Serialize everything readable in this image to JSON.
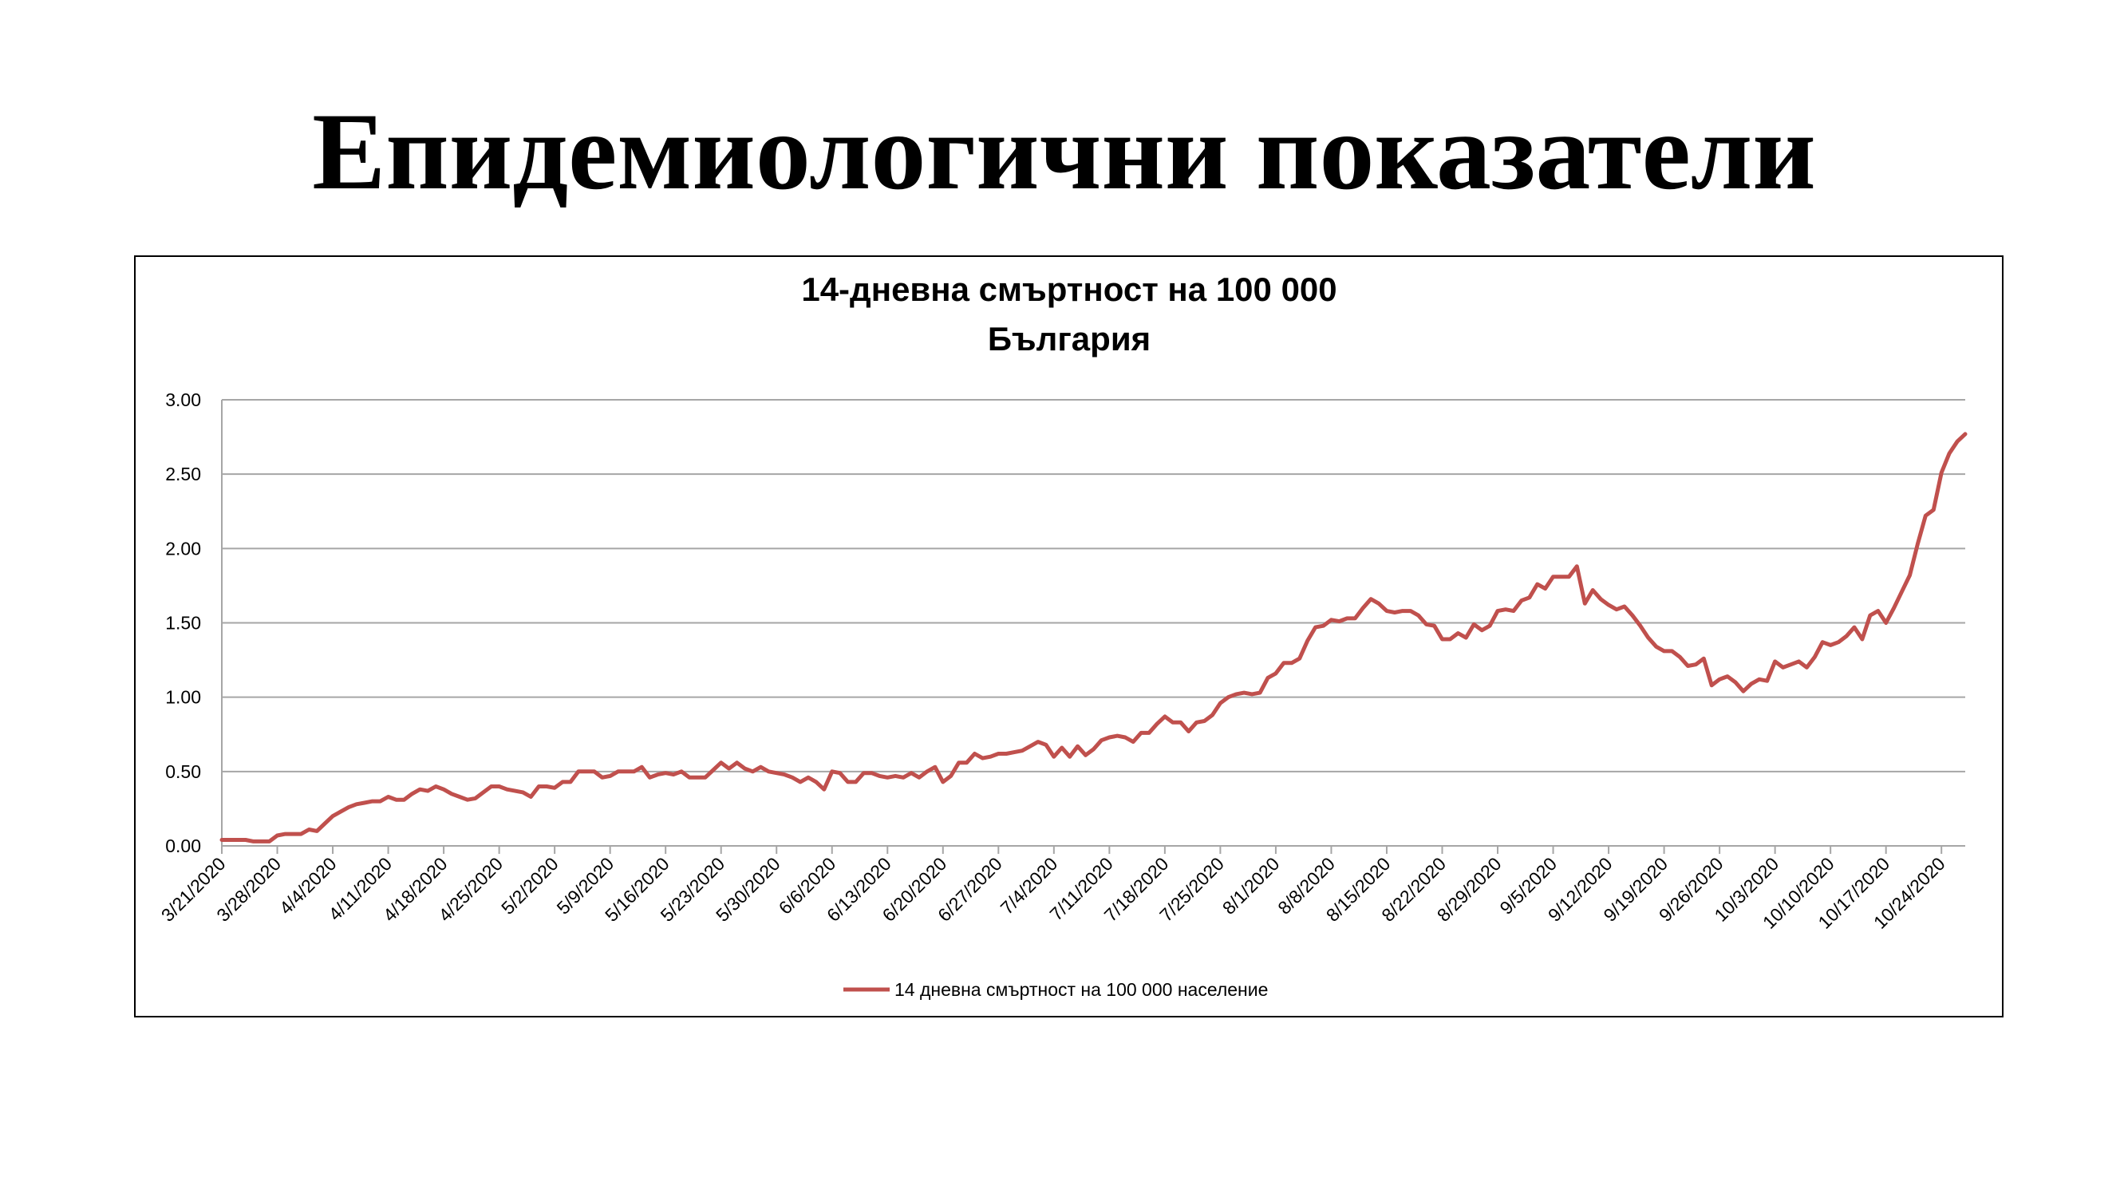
{
  "slide": {
    "title": "Епидемиологични показатели"
  },
  "chart_data": {
    "type": "line",
    "title": "14-дневна смъртност на 100 000",
    "subtitle": "България",
    "xlabel": "",
    "ylabel": "",
    "ylim": [
      0,
      3
    ],
    "yticks": [
      "0.00",
      "0.50",
      "1.00",
      "1.50",
      "2.00",
      "2.50",
      "3.00"
    ],
    "grid": true,
    "legend_position": "bottom",
    "start_date": "3/21/2020",
    "end_date": "10/27/2020",
    "x_tick_labels": [
      "3/21/2020",
      "3/28/2020",
      "4/4/2020",
      "4/11/2020",
      "4/18/2020",
      "4/25/2020",
      "5/2/2020",
      "5/9/2020",
      "5/16/2020",
      "5/23/2020",
      "5/30/2020",
      "6/6/2020",
      "6/13/2020",
      "6/20/2020",
      "6/27/2020",
      "7/4/2020",
      "7/11/2020",
      "7/18/2020",
      "7/25/2020",
      "8/1/2020",
      "8/8/2020",
      "8/15/2020",
      "8/22/2020",
      "8/29/2020",
      "9/5/2020",
      "9/12/2020",
      "9/19/2020",
      "9/26/2020",
      "10/3/2020",
      "10/10/2020",
      "10/17/2020",
      "10/24/2020"
    ],
    "colors": {
      "series": "#C0504D",
      "grid": "#A6A6A6",
      "axis": "#A6A6A6"
    },
    "series": [
      {
        "name": "14 дневна смъртност на 100 000 население",
        "values": [
          0.04,
          0.04,
          0.04,
          0.04,
          0.03,
          0.03,
          0.03,
          0.07,
          0.08,
          0.08,
          0.08,
          0.11,
          0.1,
          0.15,
          0.2,
          0.23,
          0.26,
          0.28,
          0.29,
          0.3,
          0.3,
          0.33,
          0.31,
          0.31,
          0.35,
          0.38,
          0.37,
          0.4,
          0.38,
          0.35,
          0.33,
          0.31,
          0.32,
          0.36,
          0.4,
          0.4,
          0.38,
          0.37,
          0.36,
          0.33,
          0.4,
          0.4,
          0.39,
          0.43,
          0.43,
          0.5,
          0.5,
          0.5,
          0.46,
          0.47,
          0.5,
          0.5,
          0.5,
          0.53,
          0.46,
          0.48,
          0.49,
          0.48,
          0.5,
          0.46,
          0.46,
          0.46,
          0.51,
          0.56,
          0.52,
          0.56,
          0.52,
          0.5,
          0.53,
          0.5,
          0.49,
          0.48,
          0.46,
          0.43,
          0.46,
          0.43,
          0.38,
          0.5,
          0.49,
          0.43,
          0.43,
          0.49,
          0.49,
          0.47,
          0.46,
          0.47,
          0.46,
          0.49,
          0.46,
          0.5,
          0.53,
          0.43,
          0.47,
          0.56,
          0.56,
          0.62,
          0.59,
          0.6,
          0.62,
          0.62,
          0.63,
          0.64,
          0.67,
          0.7,
          0.68,
          0.6,
          0.66,
          0.6,
          0.67,
          0.61,
          0.65,
          0.71,
          0.73,
          0.74,
          0.73,
          0.7,
          0.76,
          0.76,
          0.82,
          0.87,
          0.83,
          0.83,
          0.77,
          0.83,
          0.84,
          0.88,
          0.96,
          1.0,
          1.02,
          1.03,
          1.02,
          1.03,
          1.13,
          1.16,
          1.23,
          1.23,
          1.26,
          1.38,
          1.47,
          1.48,
          1.52,
          1.51,
          1.53,
          1.53,
          1.6,
          1.66,
          1.63,
          1.58,
          1.57,
          1.58,
          1.58,
          1.55,
          1.49,
          1.48,
          1.39,
          1.39,
          1.43,
          1.4,
          1.49,
          1.45,
          1.48,
          1.58,
          1.59,
          1.58,
          1.65,
          1.67,
          1.76,
          1.73,
          1.81,
          1.81,
          1.81,
          1.88,
          1.63,
          1.72,
          1.66,
          1.62,
          1.59,
          1.61,
          1.55,
          1.48,
          1.4,
          1.34,
          1.31,
          1.31,
          1.27,
          1.21,
          1.22,
          1.26,
          1.08,
          1.12,
          1.14,
          1.1,
          1.04,
          1.09,
          1.12,
          1.11,
          1.24,
          1.2,
          1.22,
          1.24,
          1.2,
          1.27,
          1.37,
          1.35,
          1.37,
          1.41,
          1.47,
          1.39,
          1.55,
          1.58,
          1.5,
          1.6,
          1.71,
          1.82,
          2.03,
          2.22,
          2.26,
          2.51,
          2.64,
          2.72,
          2.77
        ]
      }
    ]
  }
}
